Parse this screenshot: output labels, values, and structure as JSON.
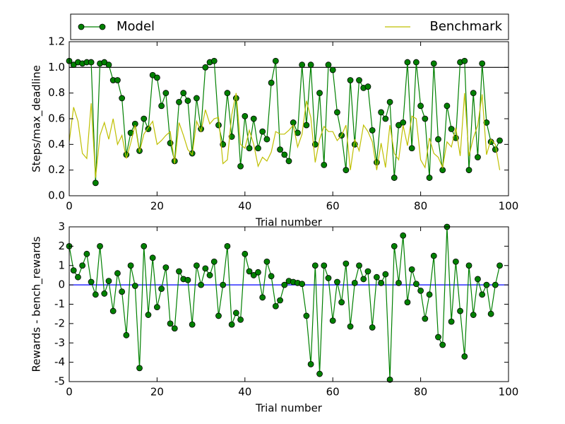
{
  "chart_data": [
    {
      "type": "line",
      "x_label": "Trial number",
      "y_label": "Steps/max_deadline",
      "x": [
        0,
        1,
        2,
        3,
        4,
        5,
        6,
        7,
        8,
        9,
        10,
        11,
        12,
        13,
        14,
        15,
        16,
        17,
        18,
        19,
        20,
        21,
        22,
        23,
        24,
        25,
        26,
        27,
        28,
        29,
        30,
        31,
        32,
        33,
        34,
        35,
        36,
        37,
        38,
        39,
        40,
        41,
        42,
        43,
        44,
        45,
        46,
        47,
        48,
        49,
        50,
        51,
        52,
        53,
        54,
        55,
        56,
        57,
        58,
        59,
        60,
        61,
        62,
        63,
        64,
        65,
        66,
        67,
        68,
        69,
        70,
        71,
        72,
        73,
        74,
        75,
        76,
        77,
        78,
        79,
        80,
        81,
        82,
        83,
        84,
        85,
        86,
        87,
        88,
        89,
        90,
        91,
        92,
        93,
        94,
        95,
        96,
        97,
        98
      ],
      "series": [
        {
          "name": "Model",
          "color": "#008000",
          "marker": true,
          "values": [
            1.05,
            1.02,
            1.04,
            1.03,
            1.04,
            1.04,
            0.1,
            1.03,
            1.04,
            1.02,
            0.9,
            0.9,
            0.76,
            0.32,
            0.49,
            0.56,
            0.35,
            0.6,
            0.52,
            0.94,
            0.92,
            0.7,
            0.8,
            0.41,
            0.27,
            0.73,
            0.8,
            0.74,
            0.33,
            0.76,
            0.52,
            1.0,
            1.04,
            1.05,
            0.55,
            0.4,
            0.8,
            0.46,
            0.76,
            0.23,
            0.62,
            0.37,
            0.6,
            0.37,
            0.5,
            0.44,
            0.88,
            1.05,
            0.36,
            0.32,
            0.27,
            0.57,
            0.49,
            1.02,
            0.55,
            1.02,
            0.4,
            0.8,
            0.24,
            1.02,
            0.98,
            0.65,
            0.47,
            0.2,
            0.9,
            0.4,
            0.9,
            0.84,
            0.85,
            0.51,
            0.26,
            0.65,
            0.6,
            0.73,
            0.14,
            0.55,
            0.57,
            1.04,
            0.37,
            1.04,
            0.7,
            0.6,
            0.14,
            1.03,
            0.44,
            0.2,
            0.7,
            0.52,
            0.45,
            1.04,
            1.05,
            0.2,
            0.8,
            0.3,
            1.03,
            0.57,
            0.42,
            0.36,
            0.43
          ]
        },
        {
          "name": "Benchmark",
          "color": "#bfbf00",
          "marker": false,
          "values": [
            0.42,
            0.69,
            0.58,
            0.33,
            0.29,
            0.72,
            0.14,
            0.47,
            0.57,
            0.44,
            0.6,
            0.4,
            0.47,
            0.29,
            0.41,
            0.55,
            0.34,
            0.48,
            0.53,
            0.58,
            0.4,
            0.43,
            0.47,
            0.5,
            0.25,
            0.57,
            0.47,
            0.36,
            0.32,
            0.58,
            0.5,
            0.67,
            0.56,
            0.6,
            0.61,
            0.25,
            0.28,
            0.63,
            0.8,
            0.4,
            0.37,
            0.51,
            0.4,
            0.23,
            0.3,
            0.27,
            0.34,
            0.5,
            0.48,
            0.48,
            0.51,
            0.55,
            0.38,
            0.48,
            0.74,
            0.61,
            0.26,
            0.44,
            0.54,
            0.5,
            0.5,
            0.43,
            0.47,
            0.55,
            0.2,
            0.44,
            0.35,
            0.55,
            0.5,
            0.42,
            0.2,
            0.41,
            0.22,
            0.55,
            0.33,
            0.28,
            0.55,
            0.39,
            0.62,
            0.6,
            0.28,
            0.22,
            0.45,
            0.33,
            0.3,
            0.22,
            0.42,
            0.38,
            0.53,
            0.31,
            0.8,
            0.31,
            0.45,
            0.55,
            0.79,
            0.32,
            0.44,
            0.4,
            0.2
          ]
        }
      ],
      "hline": {
        "y": 1,
        "color": "#000000"
      },
      "xlim": [
        0,
        100
      ],
      "xticks": [
        0,
        20,
        40,
        60,
        80,
        100
      ],
      "ylim": [
        0,
        1.2
      ],
      "yticks": [
        {
          "value": 0,
          "label": "0.0"
        },
        0.2,
        0.4,
        0.6,
        0.8,
        {
          "value": 1,
          "label": "1.0"
        },
        1.2
      ],
      "legend": "above"
    },
    {
      "type": "line",
      "x_label": "Trial number",
      "y_label": "Rewards - bench_rewards",
      "x": [
        0,
        1,
        2,
        3,
        4,
        5,
        6,
        7,
        8,
        9,
        10,
        11,
        12,
        13,
        14,
        15,
        16,
        17,
        18,
        19,
        20,
        21,
        22,
        23,
        24,
        25,
        26,
        27,
        28,
        29,
        30,
        31,
        32,
        33,
        34,
        35,
        36,
        37,
        38,
        39,
        40,
        41,
        42,
        43,
        44,
        45,
        46,
        47,
        48,
        49,
        50,
        51,
        52,
        53,
        54,
        55,
        56,
        57,
        58,
        59,
        60,
        61,
        62,
        63,
        64,
        65,
        66,
        67,
        68,
        69,
        70,
        71,
        72,
        73,
        74,
        75,
        76,
        77,
        78,
        79,
        80,
        81,
        82,
        83,
        84,
        85,
        86,
        87,
        88,
        89,
        90,
        91,
        92,
        93,
        94,
        95,
        96,
        97,
        98
      ],
      "series": [
        {
          "color": "#008000",
          "marker": true,
          "values": [
            2.0,
            0.75,
            0.4,
            1.0,
            1.6,
            0.15,
            -0.5,
            2.0,
            -0.45,
            0.2,
            -1.35,
            0.6,
            -0.35,
            -2.6,
            1.0,
            -0.05,
            -4.3,
            2.0,
            -1.55,
            1.4,
            -1.15,
            -0.2,
            0.9,
            -2.0,
            -2.25,
            0.7,
            0.3,
            0.25,
            -2.05,
            1.0,
            0.0,
            0.85,
            0.5,
            1.2,
            -1.6,
            0.0,
            2.0,
            -2.05,
            -1.45,
            -1.8,
            1.6,
            0.7,
            0.5,
            0.65,
            -0.65,
            1.2,
            0.45,
            -1.1,
            -0.8,
            0.0,
            0.2,
            0.15,
            0.1,
            0.05,
            -1.6,
            -4.1,
            1.0,
            -4.6,
            1.0,
            0.35,
            -1.85,
            0.15,
            -0.9,
            1.1,
            -2.15,
            0.1,
            1.0,
            0.3,
            0.7,
            -2.2,
            0.4,
            0.1,
            0.55,
            -4.9,
            2.0,
            0.1,
            2.55,
            -0.9,
            0.8,
            0.05,
            -0.3,
            -1.75,
            -0.5,
            1.5,
            -2.7,
            -3.1,
            3.0,
            -1.9,
            1.2,
            -1.35,
            -3.7,
            1.0,
            -1.55,
            0.3,
            -0.5,
            0.0,
            -1.5,
            0.0,
            1.0
          ]
        }
      ],
      "hline": {
        "y": 0,
        "color": "#0000ff"
      },
      "xlim": [
        0,
        100
      ],
      "xticks": [
        0,
        20,
        40,
        60,
        80,
        100
      ],
      "ylim": [
        -5,
        3
      ],
      "yticks": [
        -5,
        -4,
        -3,
        -2,
        -1,
        0,
        1,
        2,
        3
      ]
    }
  ]
}
